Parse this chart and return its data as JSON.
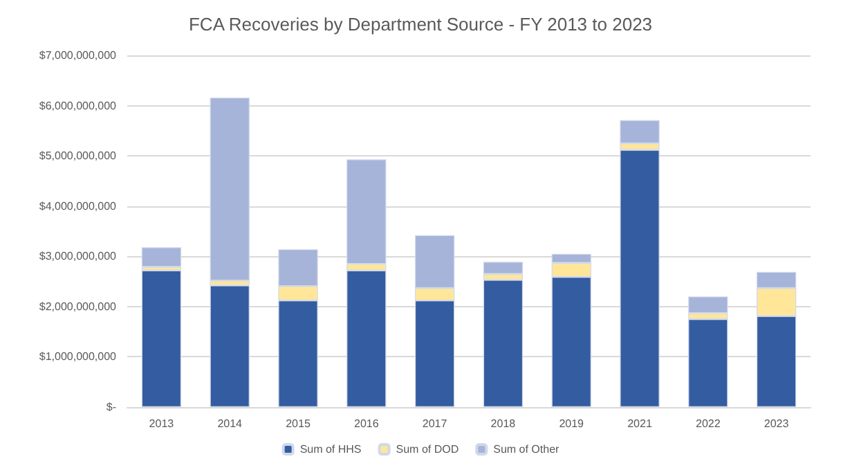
{
  "chart_data": {
    "type": "bar",
    "stacked": true,
    "title": "FCA Recoveries by Department Source - FY 2013 to 2023",
    "categories": [
      "2013",
      "2014",
      "2015",
      "2016",
      "2017",
      "2018",
      "2019",
      "2021",
      "2022",
      "2023"
    ],
    "series": [
      {
        "name": "Sum of HHS",
        "color": "#345ca0",
        "values": [
          2720000000,
          2420000000,
          2120000000,
          2720000000,
          2120000000,
          2530000000,
          2590000000,
          5120000000,
          1750000000,
          1810000000
        ]
      },
      {
        "name": "Sum of DOD",
        "color": "#ffe699",
        "values": [
          70000000,
          100000000,
          290000000,
          130000000,
          250000000,
          120000000,
          280000000,
          130000000,
          120000000,
          560000000
        ]
      },
      {
        "name": "Sum of Other",
        "color": "#a6b4d9",
        "values": [
          390000000,
          3640000000,
          730000000,
          2080000000,
          1050000000,
          240000000,
          180000000,
          460000000,
          330000000,
          320000000
        ]
      }
    ],
    "ylim": [
      0,
      7000000000
    ],
    "yticks": [
      {
        "value": 0,
        "label": "$-"
      },
      {
        "value": 1000000000,
        "label": "$1,000,000,000"
      },
      {
        "value": 2000000000,
        "label": "$2,000,000,000"
      },
      {
        "value": 3000000000,
        "label": "$3,000,000,000"
      },
      {
        "value": 4000000000,
        "label": "$4,000,000,000"
      },
      {
        "value": 5000000000,
        "label": "$5,000,000,000"
      },
      {
        "value": 6000000000,
        "label": "$6,000,000,000"
      },
      {
        "value": 7000000000,
        "label": "$7,000,000,000"
      }
    ],
    "grid": "y",
    "legend": "bottom"
  }
}
